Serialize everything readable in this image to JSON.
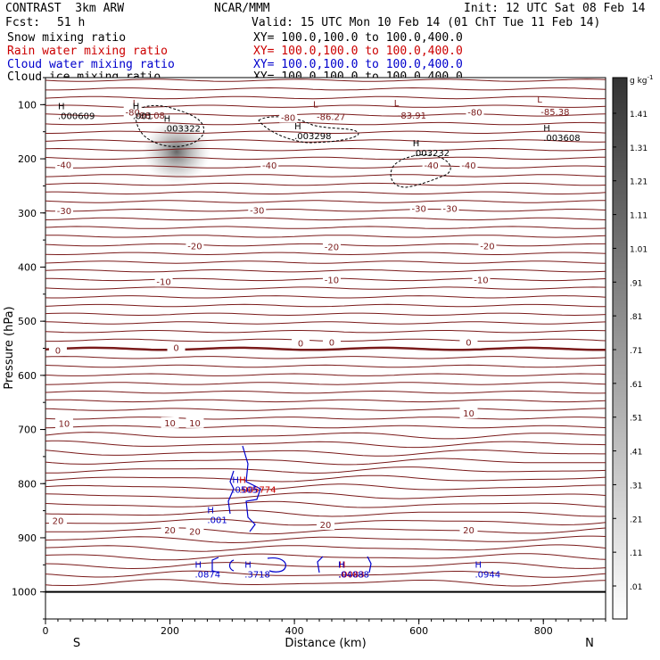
{
  "header": {
    "model": "CONTRAST  3km ARW",
    "org": "NCAR/MMM",
    "init": "Init: 12 UTC Sat 08 Feb 14",
    "fcst_label": "Fcst:",
    "fcst_value": "51 h",
    "valid": "Valid: 15 UTC Mon 10 Feb 14 (01 ChT Tue 11 Feb 14)",
    "fields": [
      {
        "name": "Snow mixing ratio",
        "xy": "XY= 100.0,100.0 to 100.0,400.0",
        "color": "#000000"
      },
      {
        "name": "Rain water mixing ratio",
        "xy": "XY= 100.0,100.0 to 100.0,400.0",
        "color": "#cc0000"
      },
      {
        "name": "Cloud water mixing ratio",
        "xy": "XY= 100.0,100.0 to 100.0,400.0",
        "color": "#0000cc"
      },
      {
        "name": "Cloud ice mixing ratio",
        "xy": "XY= 100.0,100.0 to 100.0,400.0",
        "color": "#000000"
      }
    ]
  },
  "chart_data": {
    "type": "cross-section contour",
    "xlabel": "Distance (km)",
    "ylabel": "Pressure (hPa)",
    "xlim": [
      0,
      900
    ],
    "ylim": [
      1050,
      50
    ],
    "x_ticks": [
      0,
      200,
      400,
      600,
      800
    ],
    "y_ticks": [
      100,
      200,
      300,
      400,
      500,
      600,
      700,
      800,
      900,
      1000
    ],
    "x_end_labels": {
      "left": "S",
      "right": "N"
    },
    "colorbar": {
      "unit": "g kg",
      "unit_exp": "-1",
      "levels": [
        "1.41",
        "1.31",
        "1.21",
        "1.11",
        "1.01",
        ".91",
        ".81",
        ".71",
        ".61",
        ".51",
        ".41",
        ".31",
        ".21",
        ".11",
        ".01"
      ]
    },
    "temperature_contour_labels": [
      {
        "x": 140,
        "p": 115,
        "text": "-80"
      },
      {
        "x": 390,
        "p": 125,
        "text": "-80"
      },
      {
        "x": 690,
        "p": 115,
        "text": "-80"
      },
      {
        "x": 30,
        "p": 212,
        "text": "-40"
      },
      {
        "x": 360,
        "p": 213,
        "text": "-40"
      },
      {
        "x": 620,
        "p": 213,
        "text": "-40"
      },
      {
        "x": 680,
        "p": 213,
        "text": "-40"
      },
      {
        "x": 30,
        "p": 297,
        "text": "-30"
      },
      {
        "x": 340,
        "p": 296,
        "text": "-30"
      },
      {
        "x": 600,
        "p": 293,
        "text": "-30"
      },
      {
        "x": 650,
        "p": 293,
        "text": "-30"
      },
      {
        "x": 240,
        "p": 362,
        "text": "-20"
      },
      {
        "x": 460,
        "p": 364,
        "text": "-20"
      },
      {
        "x": 710,
        "p": 362,
        "text": "-20"
      },
      {
        "x": 190,
        "p": 428,
        "text": "-10"
      },
      {
        "x": 460,
        "p": 425,
        "text": "-10"
      },
      {
        "x": 700,
        "p": 425,
        "text": "-10"
      },
      {
        "x": 20,
        "p": 555,
        "text": "0"
      },
      {
        "x": 210,
        "p": 550,
        "text": "0"
      },
      {
        "x": 410,
        "p": 542,
        "text": "0"
      },
      {
        "x": 460,
        "p": 540,
        "text": "0"
      },
      {
        "x": 680,
        "p": 540,
        "text": "0"
      },
      {
        "x": 30,
        "p": 690,
        "text": "10"
      },
      {
        "x": 200,
        "p": 689,
        "text": "10"
      },
      {
        "x": 240,
        "p": 689,
        "text": "10"
      },
      {
        "x": 680,
        "p": 671,
        "text": "10"
      },
      {
        "x": 20,
        "p": 870,
        "text": "20"
      },
      {
        "x": 200,
        "p": 887,
        "text": "20"
      },
      {
        "x": 240,
        "p": 889,
        "text": "20"
      },
      {
        "x": 450,
        "p": 877,
        "text": "20"
      },
      {
        "x": 680,
        "p": 887,
        "text": "20"
      }
    ],
    "temperature_minima": [
      {
        "x": 140,
        "p": 113,
        "value": "-88.08"
      },
      {
        "x": 430,
        "p": 115,
        "value": "-86.27"
      },
      {
        "x": 560,
        "p": 113,
        "value": "-83.91"
      },
      {
        "x": 790,
        "p": 106,
        "value": "-85.38"
      }
    ],
    "snow_maxima": [
      {
        "x": 20,
        "p": 125,
        "value": ".000609"
      },
      {
        "x": 140,
        "p": 125,
        "value": ".001"
      },
      {
        "x": 190,
        "p": 148,
        "value": ".003322"
      },
      {
        "x": 400,
        "p": 162,
        "value": ".003298"
      },
      {
        "x": 590,
        "p": 193,
        "value": ".003232"
      },
      {
        "x": 800,
        "p": 165,
        "value": ".003608"
      }
    ],
    "rain_maxima": [
      {
        "x": 320,
        "p": 815,
        "value": ".005774"
      },
      {
        "x": 480,
        "p": 972,
        "value": ".0083"
      }
    ],
    "cloud_water_maxima": [
      {
        "x": 260,
        "p": 871,
        "value": ".001"
      },
      {
        "x": 300,
        "p": 815,
        "value": ".0505"
      },
      {
        "x": 240,
        "p": 972,
        "value": ".0874"
      },
      {
        "x": 320,
        "p": 972,
        "value": ".3718"
      },
      {
        "x": 470,
        "p": 972,
        "value": ".04088"
      },
      {
        "x": 690,
        "p": 972,
        "value": ".0944"
      }
    ],
    "surface_p": 1000
  }
}
